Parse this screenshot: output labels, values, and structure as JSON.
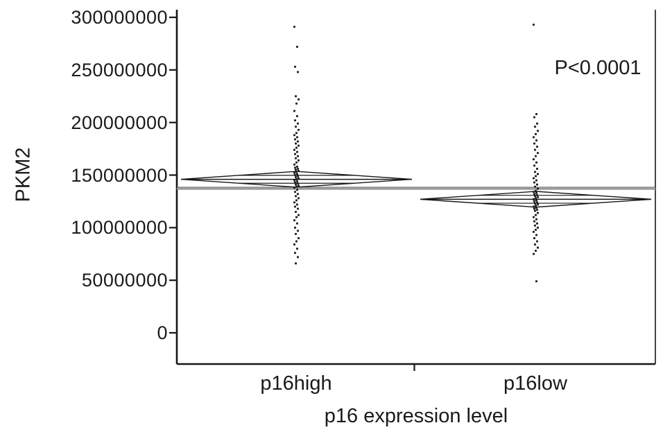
{
  "chart_data": {
    "type": "scatter",
    "variant": "means-diamond-plot",
    "title": "",
    "xlabel": "p16 expression level",
    "ylabel": "PKM2",
    "annotation": "P<0.0001",
    "ylim": [
      0,
      300000000
    ],
    "yticks": [
      300000000,
      250000000,
      200000000,
      150000000,
      100000000,
      50000000,
      0
    ],
    "grand_mean": 137000000,
    "grid": false,
    "legend": "none",
    "categories": [
      "p16high",
      "p16low"
    ],
    "groups": [
      {
        "label": "p16high",
        "mean": 146000000,
        "ci_half": 7500000,
        "points": [
          291000000,
          272000000,
          253000000,
          248000000,
          225000000,
          222000000,
          218000000,
          211000000,
          206000000,
          202000000,
          199000000,
          196000000,
          193000000,
          190000000,
          188000000,
          186000000,
          184000000,
          182000000,
          180000000,
          178000000,
          176000000,
          174000000,
          172000000,
          170000000,
          168000000,
          166000000,
          164000000,
          162000000,
          160000000,
          158000000,
          157000000,
          156000000,
          155000000,
          154000000,
          153000000,
          152000000,
          151000000,
          150000000,
          149000000,
          148000000,
          147000000,
          146000000,
          145000000,
          144000000,
          143000000,
          142000000,
          141000000,
          140000000,
          139000000,
          138000000,
          136000000,
          134000000,
          132000000,
          130000000,
          128000000,
          126000000,
          124000000,
          122000000,
          120000000,
          118000000,
          115000000,
          112000000,
          110000000,
          107000000,
          104000000,
          100000000,
          97000000,
          94000000,
          90000000,
          87000000,
          84000000,
          80000000,
          76000000,
          72000000,
          66000000
        ]
      },
      {
        "label": "p16low",
        "mean": 127000000,
        "ci_half": 7500000,
        "points": [
          293000000,
          208000000,
          205000000,
          199000000,
          196000000,
          192000000,
          189000000,
          186000000,
          183000000,
          180000000,
          177000000,
          174000000,
          171000000,
          168000000,
          165000000,
          162000000,
          159000000,
          156000000,
          153000000,
          151000000,
          149000000,
          147000000,
          145000000,
          143000000,
          141000000,
          139000000,
          137000000,
          135000000,
          134000000,
          133000000,
          132000000,
          131000000,
          130000000,
          129000000,
          128000000,
          127000000,
          126000000,
          125000000,
          124000000,
          123000000,
          122000000,
          121000000,
          120000000,
          119000000,
          118000000,
          117000000,
          116000000,
          114000000,
          112000000,
          110000000,
          108000000,
          106000000,
          104000000,
          102000000,
          100000000,
          98000000,
          96000000,
          93000000,
          90000000,
          87000000,
          84000000,
          81000000,
          78000000,
          75000000,
          49000000
        ]
      }
    ]
  }
}
